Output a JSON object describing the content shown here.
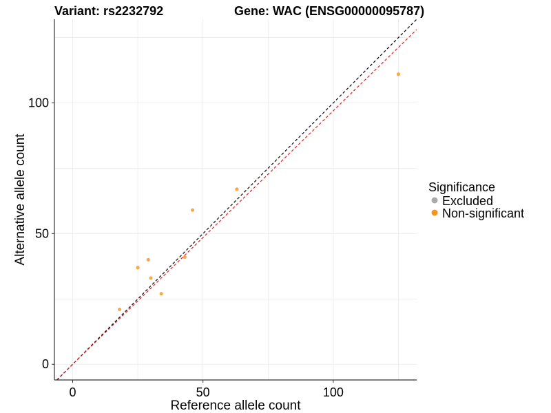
{
  "chart_data": {
    "type": "scatter",
    "title_left": "Variant: rs2232792",
    "title_right": "Gene: WAC (ENSG00000095787)",
    "xlabel": "Reference allele count",
    "ylabel": "Alternative allele count",
    "xlim": [
      -7,
      132
    ],
    "ylim": [
      -6,
      132
    ],
    "xticks": [
      0,
      50,
      100
    ],
    "yticks": [
      0,
      50,
      100
    ],
    "xtick_labels": [
      "0",
      "50",
      "100"
    ],
    "ytick_labels": [
      "0",
      "50",
      "100"
    ],
    "grid": true,
    "points": [
      {
        "x": 18,
        "y": 21
      },
      {
        "x": 25,
        "y": 37
      },
      {
        "x": 29,
        "y": 40
      },
      {
        "x": 30,
        "y": 33
      },
      {
        "x": 34,
        "y": 27
      },
      {
        "x": 43,
        "y": 41
      },
      {
        "x": 46,
        "y": 59
      },
      {
        "x": 63,
        "y": 67
      },
      {
        "x": 125,
        "y": 111
      }
    ],
    "lines": [
      {
        "name": "identity",
        "slope": 1.0,
        "intercept": 0,
        "color": "#000000",
        "dashed": true
      },
      {
        "name": "fit",
        "slope": 0.97,
        "intercept": 0,
        "color": "#e41a1c",
        "dashed": true
      }
    ],
    "legend": {
      "title": "Significance",
      "position": "right",
      "items": [
        {
          "label": "Excluded",
          "color": "#aaaaaa"
        },
        {
          "label": "Non-significant",
          "color": "#f7931e"
        }
      ]
    },
    "point_color": "#f7931e"
  }
}
